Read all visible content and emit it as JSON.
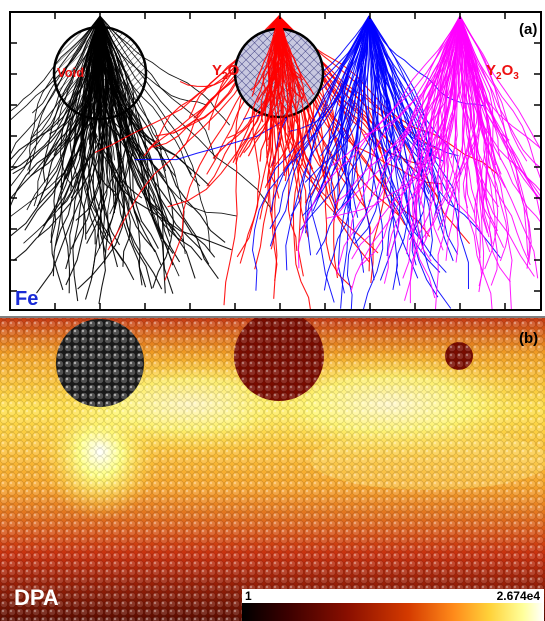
{
  "panel_a": {
    "tag": "(a)",
    "material_label": "Fe",
    "void_label": "Void",
    "y2o3_label_red": "Y2O3",
    "y2o3_label_magenta": "Y2O3",
    "colors": {
      "void_tracks": "#000000",
      "y2o3_tracks": "#ff0000",
      "blue_tracks": "#0000ff",
      "magenta_tracks": "#ff00ff",
      "fe_label": "#1a2bd6",
      "frame": "#000000"
    }
  },
  "panel_b": {
    "tag": "(b)",
    "metric_label": "DPA",
    "colorbar": {
      "min_label": "1",
      "max_label": "2.674e4",
      "colors": [
        "#000000",
        "#3b0000",
        "#8a0f00",
        "#d43a00",
        "#ff8a1a",
        "#ffd23a",
        "#ffff9a",
        "#ffffff"
      ]
    }
  }
}
